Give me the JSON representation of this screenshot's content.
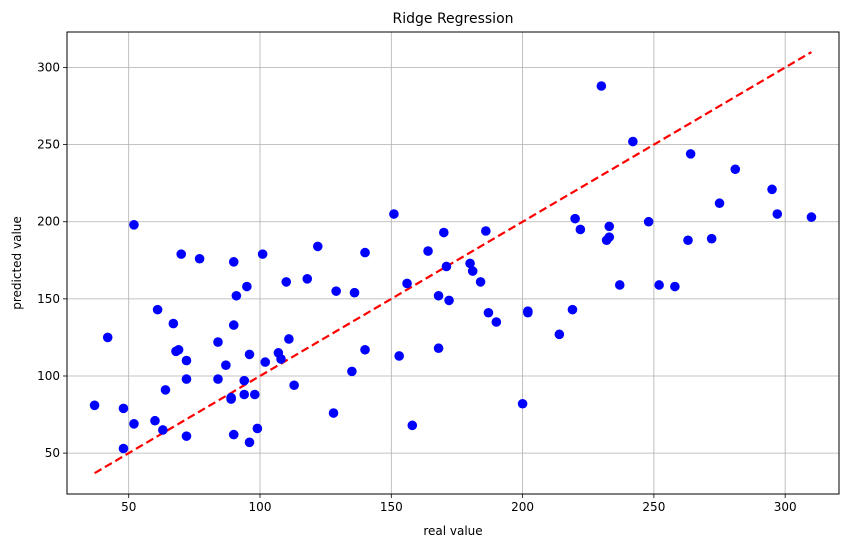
{
  "chart_data": {
    "type": "scatter",
    "title": "Ridge Regression",
    "xlabel": "real value",
    "ylabel": "predicted value",
    "xlim": [
      26.5,
      320.5
    ],
    "ylim": [
      23.5,
      323
    ],
    "xticks": [
      50,
      100,
      150,
      200,
      250,
      300
    ],
    "yticks": [
      50,
      100,
      150,
      200,
      250,
      300
    ],
    "grid": true,
    "colors": {
      "points": "#0000ff",
      "line": "#ff0000",
      "grid": "#b0b0b0"
    },
    "reference_line": {
      "x": [
        37,
        310
      ],
      "y": [
        37,
        310
      ],
      "style": "dashed"
    },
    "points": [
      [
        37,
        81
      ],
      [
        42,
        125
      ],
      [
        48,
        79
      ],
      [
        48,
        53
      ],
      [
        52,
        69
      ],
      [
        52,
        198
      ],
      [
        60,
        71
      ],
      [
        61,
        143
      ],
      [
        63,
        65
      ],
      [
        64,
        91
      ],
      [
        67,
        134
      ],
      [
        68,
        116
      ],
      [
        69,
        117
      ],
      [
        70,
        179
      ],
      [
        72,
        110
      ],
      [
        72,
        98
      ],
      [
        72,
        61
      ],
      [
        77,
        176
      ],
      [
        84,
        122
      ],
      [
        84,
        98
      ],
      [
        87,
        107
      ],
      [
        89,
        85
      ],
      [
        89,
        86
      ],
      [
        90,
        133
      ],
      [
        90,
        174
      ],
      [
        90,
        62
      ],
      [
        91,
        152
      ],
      [
        94,
        97
      ],
      [
        94,
        88
      ],
      [
        95,
        158
      ],
      [
        96,
        114
      ],
      [
        96,
        57
      ],
      [
        98,
        88
      ],
      [
        99,
        66
      ],
      [
        101,
        179
      ],
      [
        102,
        109
      ],
      [
        107,
        115
      ],
      [
        108,
        111
      ],
      [
        110,
        161
      ],
      [
        111,
        124
      ],
      [
        113,
        94
      ],
      [
        118,
        163
      ],
      [
        122,
        184
      ],
      [
        128,
        76
      ],
      [
        129,
        155
      ],
      [
        135,
        103
      ],
      [
        136,
        154
      ],
      [
        140,
        117
      ],
      [
        140,
        180
      ],
      [
        151,
        205
      ],
      [
        153,
        113
      ],
      [
        156,
        160
      ],
      [
        158,
        68
      ],
      [
        164,
        181
      ],
      [
        168,
        152
      ],
      [
        168,
        118
      ],
      [
        170,
        193
      ],
      [
        171,
        171
      ],
      [
        172,
        149
      ],
      [
        180,
        173
      ],
      [
        181,
        168
      ],
      [
        184,
        161
      ],
      [
        186,
        194
      ],
      [
        187,
        141
      ],
      [
        190,
        135
      ],
      [
        200,
        82
      ],
      [
        202,
        142
      ],
      [
        202,
        141
      ],
      [
        214,
        127
      ],
      [
        219,
        143
      ],
      [
        220,
        202
      ],
      [
        222,
        195
      ],
      [
        230,
        288
      ],
      [
        232,
        188
      ],
      [
        233,
        190
      ],
      [
        233,
        197
      ],
      [
        237,
        159
      ],
      [
        242,
        252
      ],
      [
        248,
        200
      ],
      [
        252,
        159
      ],
      [
        258,
        158
      ],
      [
        263,
        188
      ],
      [
        264,
        244
      ],
      [
        272,
        189
      ],
      [
        275,
        212
      ],
      [
        281,
        234
      ],
      [
        295,
        221
      ],
      [
        297,
        205
      ],
      [
        310,
        203
      ]
    ]
  }
}
